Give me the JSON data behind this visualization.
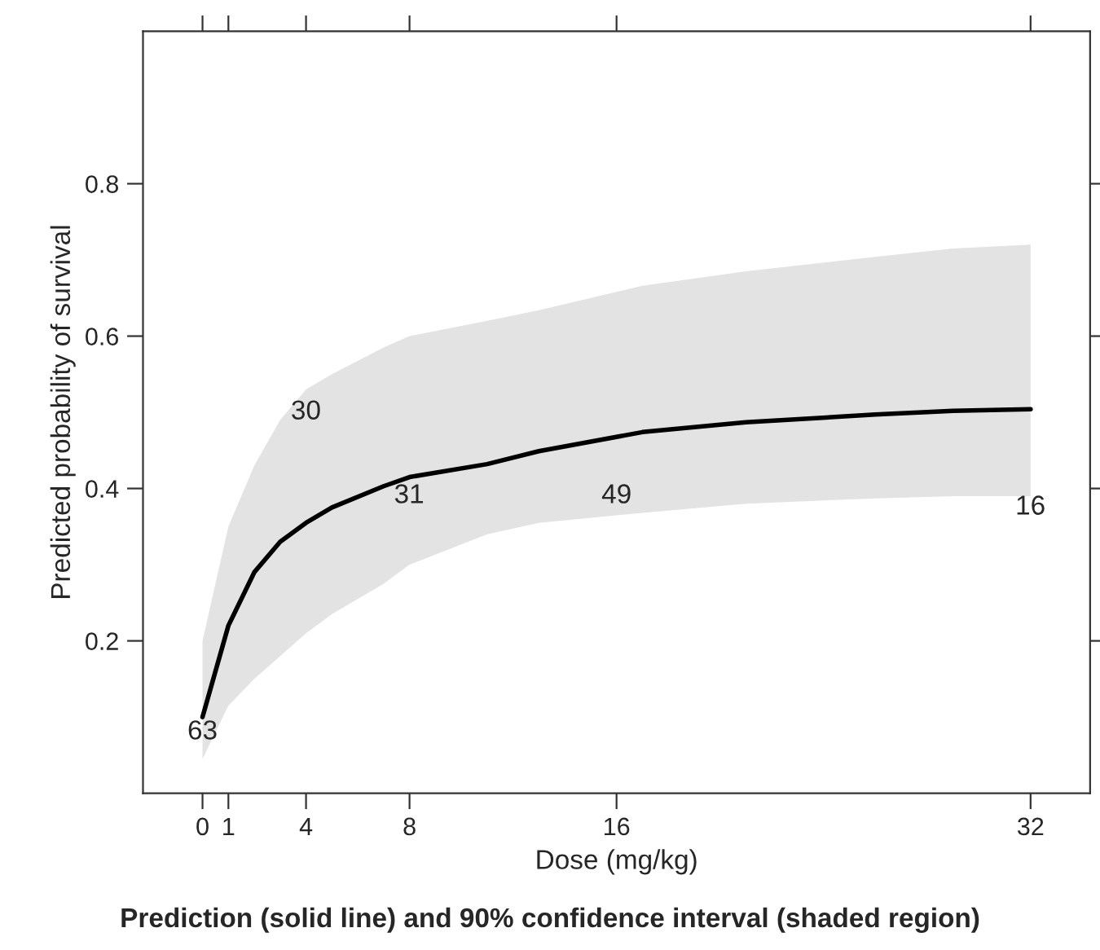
{
  "chart_data": {
    "type": "line",
    "xlabel": "Dose (mg/kg)",
    "ylabel": "Predicted probability of survival",
    "x": [
      0,
      1,
      2,
      3,
      4,
      5,
      7,
      8,
      11,
      13,
      17,
      21,
      26,
      29,
      32
    ],
    "series": [
      {
        "color": "#000000",
        "values": [
          0.1,
          0.22,
          0.29,
          0.33,
          0.355,
          0.375,
          0.403,
          0.415,
          0.432,
          0.449,
          0.474,
          0.487,
          0.497,
          0.502,
          0.504
        ],
        "lower": [
          0.045,
          0.115,
          0.15,
          0.18,
          0.21,
          0.235,
          0.275,
          0.3,
          0.34,
          0.355,
          0.368,
          0.38,
          0.387,
          0.39,
          0.39
        ],
        "upper": [
          0.2,
          0.35,
          0.43,
          0.49,
          0.53,
          0.55,
          0.585,
          0.6,
          0.62,
          0.634,
          0.666,
          0.685,
          0.704,
          0.715,
          0.72
        ]
      }
    ],
    "xlim": [
      -2.3,
      34.3
    ],
    "ylim": [
      0,
      1
    ],
    "xticks": [
      0,
      1,
      4,
      8,
      16,
      32
    ],
    "yticks": [
      0.2,
      0.4,
      0.6,
      0.8
    ],
    "grid": false,
    "legend": false,
    "marker": "none",
    "line_style": "solid",
    "annotations": [
      {
        "text": "63",
        "x": 0,
        "y": 0.08
      },
      "30",
      "31",
      "49",
      "16",
      "Prediction (solid line) and 90% confidence interval (shaded region)"
    ]
  }
}
